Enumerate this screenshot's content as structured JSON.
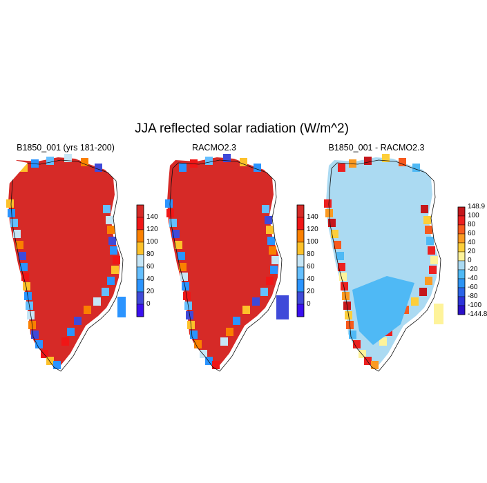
{
  "title": "JJA reflected solar radiation (W/m^2)",
  "panels": [
    {
      "title": "B1850_001 (yrs 181-200)"
    },
    {
      "title": "RACMO2.3"
    },
    {
      "title": "B1850_001 - RACMO2.3"
    }
  ],
  "colorbars": {
    "absolute": {
      "labels": [
        "140",
        "120",
        "100",
        "80",
        "60",
        "40",
        "20",
        "0"
      ],
      "colors": [
        "#d62a27",
        "#f01616",
        "#fb8000",
        "#fdc12a",
        "#c6e6f6",
        "#64bfff",
        "#2b94ff",
        "#3f4ad9",
        "#3a10f0"
      ]
    },
    "difference": {
      "labels": [
        "148.9",
        "100",
        "80",
        "60",
        "40",
        "20",
        "0",
        "-20",
        "-40",
        "-60",
        "-80",
        "-100",
        "-144.8"
      ],
      "colors": [
        "#c5171c",
        "#ec2020",
        "#f75a1e",
        "#fb9a22",
        "#fdce3a",
        "#fef39a",
        "#abdaf2",
        "#4fb9f5",
        "#2c94f4",
        "#2b64e8",
        "#2d34da",
        "#2a10c8"
      ]
    }
  }
}
